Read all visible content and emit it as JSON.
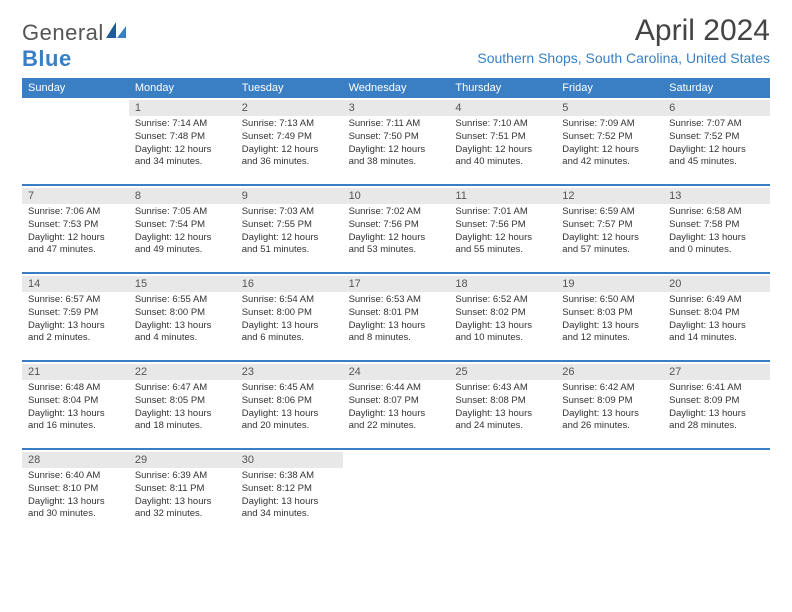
{
  "brand": {
    "part1": "General",
    "part2": "Blue"
  },
  "title": "April 2024",
  "location": "Southern Shops, South Carolina, United States",
  "colors": {
    "header_bg": "#3a7fc4",
    "daynum_bg": "#e8e8e8",
    "text": "#333333",
    "brand_gray": "#555555"
  },
  "day_names": [
    "Sunday",
    "Monday",
    "Tuesday",
    "Wednesday",
    "Thursday",
    "Friday",
    "Saturday"
  ],
  "weeks": [
    [
      {
        "n": "",
        "sunrise": "",
        "sunset": "",
        "day": ""
      },
      {
        "n": "1",
        "sunrise": "Sunrise: 7:14 AM",
        "sunset": "Sunset: 7:48 PM",
        "day": "Daylight: 12 hours and 34 minutes."
      },
      {
        "n": "2",
        "sunrise": "Sunrise: 7:13 AM",
        "sunset": "Sunset: 7:49 PM",
        "day": "Daylight: 12 hours and 36 minutes."
      },
      {
        "n": "3",
        "sunrise": "Sunrise: 7:11 AM",
        "sunset": "Sunset: 7:50 PM",
        "day": "Daylight: 12 hours and 38 minutes."
      },
      {
        "n": "4",
        "sunrise": "Sunrise: 7:10 AM",
        "sunset": "Sunset: 7:51 PM",
        "day": "Daylight: 12 hours and 40 minutes."
      },
      {
        "n": "5",
        "sunrise": "Sunrise: 7:09 AM",
        "sunset": "Sunset: 7:52 PM",
        "day": "Daylight: 12 hours and 42 minutes."
      },
      {
        "n": "6",
        "sunrise": "Sunrise: 7:07 AM",
        "sunset": "Sunset: 7:52 PM",
        "day": "Daylight: 12 hours and 45 minutes."
      }
    ],
    [
      {
        "n": "7",
        "sunrise": "Sunrise: 7:06 AM",
        "sunset": "Sunset: 7:53 PM",
        "day": "Daylight: 12 hours and 47 minutes."
      },
      {
        "n": "8",
        "sunrise": "Sunrise: 7:05 AM",
        "sunset": "Sunset: 7:54 PM",
        "day": "Daylight: 12 hours and 49 minutes."
      },
      {
        "n": "9",
        "sunrise": "Sunrise: 7:03 AM",
        "sunset": "Sunset: 7:55 PM",
        "day": "Daylight: 12 hours and 51 minutes."
      },
      {
        "n": "10",
        "sunrise": "Sunrise: 7:02 AM",
        "sunset": "Sunset: 7:56 PM",
        "day": "Daylight: 12 hours and 53 minutes."
      },
      {
        "n": "11",
        "sunrise": "Sunrise: 7:01 AM",
        "sunset": "Sunset: 7:56 PM",
        "day": "Daylight: 12 hours and 55 minutes."
      },
      {
        "n": "12",
        "sunrise": "Sunrise: 6:59 AM",
        "sunset": "Sunset: 7:57 PM",
        "day": "Daylight: 12 hours and 57 minutes."
      },
      {
        "n": "13",
        "sunrise": "Sunrise: 6:58 AM",
        "sunset": "Sunset: 7:58 PM",
        "day": "Daylight: 13 hours and 0 minutes."
      }
    ],
    [
      {
        "n": "14",
        "sunrise": "Sunrise: 6:57 AM",
        "sunset": "Sunset: 7:59 PM",
        "day": "Daylight: 13 hours and 2 minutes."
      },
      {
        "n": "15",
        "sunrise": "Sunrise: 6:55 AM",
        "sunset": "Sunset: 8:00 PM",
        "day": "Daylight: 13 hours and 4 minutes."
      },
      {
        "n": "16",
        "sunrise": "Sunrise: 6:54 AM",
        "sunset": "Sunset: 8:00 PM",
        "day": "Daylight: 13 hours and 6 minutes."
      },
      {
        "n": "17",
        "sunrise": "Sunrise: 6:53 AM",
        "sunset": "Sunset: 8:01 PM",
        "day": "Daylight: 13 hours and 8 minutes."
      },
      {
        "n": "18",
        "sunrise": "Sunrise: 6:52 AM",
        "sunset": "Sunset: 8:02 PM",
        "day": "Daylight: 13 hours and 10 minutes."
      },
      {
        "n": "19",
        "sunrise": "Sunrise: 6:50 AM",
        "sunset": "Sunset: 8:03 PM",
        "day": "Daylight: 13 hours and 12 minutes."
      },
      {
        "n": "20",
        "sunrise": "Sunrise: 6:49 AM",
        "sunset": "Sunset: 8:04 PM",
        "day": "Daylight: 13 hours and 14 minutes."
      }
    ],
    [
      {
        "n": "21",
        "sunrise": "Sunrise: 6:48 AM",
        "sunset": "Sunset: 8:04 PM",
        "day": "Daylight: 13 hours and 16 minutes."
      },
      {
        "n": "22",
        "sunrise": "Sunrise: 6:47 AM",
        "sunset": "Sunset: 8:05 PM",
        "day": "Daylight: 13 hours and 18 minutes."
      },
      {
        "n": "23",
        "sunrise": "Sunrise: 6:45 AM",
        "sunset": "Sunset: 8:06 PM",
        "day": "Daylight: 13 hours and 20 minutes."
      },
      {
        "n": "24",
        "sunrise": "Sunrise: 6:44 AM",
        "sunset": "Sunset: 8:07 PM",
        "day": "Daylight: 13 hours and 22 minutes."
      },
      {
        "n": "25",
        "sunrise": "Sunrise: 6:43 AM",
        "sunset": "Sunset: 8:08 PM",
        "day": "Daylight: 13 hours and 24 minutes."
      },
      {
        "n": "26",
        "sunrise": "Sunrise: 6:42 AM",
        "sunset": "Sunset: 8:09 PM",
        "day": "Daylight: 13 hours and 26 minutes."
      },
      {
        "n": "27",
        "sunrise": "Sunrise: 6:41 AM",
        "sunset": "Sunset: 8:09 PM",
        "day": "Daylight: 13 hours and 28 minutes."
      }
    ],
    [
      {
        "n": "28",
        "sunrise": "Sunrise: 6:40 AM",
        "sunset": "Sunset: 8:10 PM",
        "day": "Daylight: 13 hours and 30 minutes."
      },
      {
        "n": "29",
        "sunrise": "Sunrise: 6:39 AM",
        "sunset": "Sunset: 8:11 PM",
        "day": "Daylight: 13 hours and 32 minutes."
      },
      {
        "n": "30",
        "sunrise": "Sunrise: 6:38 AM",
        "sunset": "Sunset: 8:12 PM",
        "day": "Daylight: 13 hours and 34 minutes."
      },
      {
        "n": "",
        "sunrise": "",
        "sunset": "",
        "day": ""
      },
      {
        "n": "",
        "sunrise": "",
        "sunset": "",
        "day": ""
      },
      {
        "n": "",
        "sunrise": "",
        "sunset": "",
        "day": ""
      },
      {
        "n": "",
        "sunrise": "",
        "sunset": "",
        "day": ""
      }
    ]
  ]
}
